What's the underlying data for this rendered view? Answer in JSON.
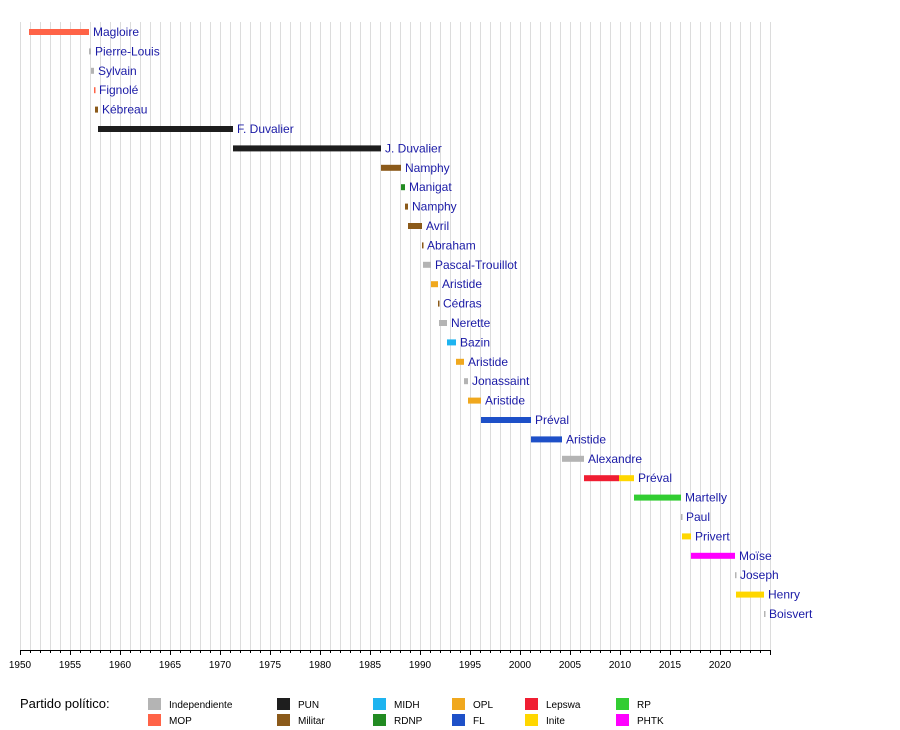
{
  "chart_data": {
    "type": "bar",
    "orientation": "horizontal-timeline",
    "x_range": [
      1950,
      2025
    ],
    "x_ticks": [
      "1950",
      "1955",
      "1960",
      "1965",
      "1970",
      "1975",
      "1980",
      "1985",
      "1990",
      "1995",
      "2000",
      "2005",
      "2010",
      "2015",
      "2020"
    ],
    "grid": "vertical, yearly",
    "legend_title": "Partido político:",
    "legend_placement": "bottom",
    "parties": [
      {
        "key": "Independiente",
        "label": "Independiente",
        "color": "#b4b4b4"
      },
      {
        "key": "MOP",
        "label": "MOP",
        "color": "#ff6347"
      },
      {
        "key": "PUN",
        "label": "PUN",
        "color": "#1e1e1e"
      },
      {
        "key": "Militar",
        "label": "Militar",
        "color": "#8b5a1a"
      },
      {
        "key": "MIDH",
        "label": "MIDH",
        "color": "#1eb4f0"
      },
      {
        "key": "RDNP",
        "label": "RDNP",
        "color": "#228b22"
      },
      {
        "key": "OPL",
        "label": "OPL",
        "color": "#f0a81e"
      },
      {
        "key": "FL",
        "label": "FL",
        "color": "#1e50c8"
      },
      {
        "key": "Lepswa",
        "label": "Lepswa",
        "color": "#f01e32"
      },
      {
        "key": "Inite",
        "label": "Inite",
        "color": "#ffd700"
      },
      {
        "key": "RP",
        "label": "RP",
        "color": "#32cd32"
      },
      {
        "key": "PHTK",
        "label": "PHTK",
        "color": "#ff00ff"
      }
    ],
    "bars": [
      {
        "label": "Magloire",
        "start": 1950.9,
        "end": 1956.9,
        "segments": [
          {
            "party": "MOP",
            "start": 1950.9,
            "end": 1956.9
          }
        ]
      },
      {
        "label": "Pierre-Louis",
        "start": 1956.9,
        "end": 1957.1,
        "segments": [
          {
            "party": "Independiente",
            "start": 1956.9,
            "end": 1957.1
          }
        ]
      },
      {
        "label": "Sylvain",
        "start": 1957.1,
        "end": 1957.4,
        "segments": [
          {
            "party": "Independiente",
            "start": 1957.1,
            "end": 1957.4
          }
        ]
      },
      {
        "label": "Fignolé",
        "start": 1957.4,
        "end": 1957.5,
        "segments": [
          {
            "party": "MOP",
            "start": 1957.4,
            "end": 1957.5
          }
        ]
      },
      {
        "label": "Kébreau",
        "start": 1957.5,
        "end": 1957.8,
        "segments": [
          {
            "party": "Militar",
            "start": 1957.5,
            "end": 1957.8
          }
        ]
      },
      {
        "label": "F. Duvalier",
        "start": 1957.8,
        "end": 1971.3,
        "segments": [
          {
            "party": "PUN",
            "start": 1957.8,
            "end": 1971.3
          }
        ]
      },
      {
        "label": "J. Duvalier",
        "start": 1971.3,
        "end": 1986.1,
        "segments": [
          {
            "party": "PUN",
            "start": 1971.3,
            "end": 1986.1
          }
        ]
      },
      {
        "label": "Namphy",
        "start": 1986.1,
        "end": 1988.1,
        "segments": [
          {
            "party": "Militar",
            "start": 1986.1,
            "end": 1988.1
          }
        ]
      },
      {
        "label": "Manigat",
        "start": 1988.1,
        "end": 1988.5,
        "segments": [
          {
            "party": "RDNP",
            "start": 1988.1,
            "end": 1988.5
          }
        ]
      },
      {
        "label": "Namphy",
        "start": 1988.5,
        "end": 1988.8,
        "segments": [
          {
            "party": "Militar",
            "start": 1988.5,
            "end": 1988.8
          }
        ]
      },
      {
        "label": "Avril",
        "start": 1988.8,
        "end": 1990.2,
        "segments": [
          {
            "party": "Militar",
            "start": 1988.8,
            "end": 1990.2
          }
        ]
      },
      {
        "label": "Abraham",
        "start": 1990.2,
        "end": 1990.3,
        "segments": [
          {
            "party": "Militar",
            "start": 1990.2,
            "end": 1990.3
          }
        ]
      },
      {
        "label": "Pascal-Trouillot",
        "start": 1990.3,
        "end": 1991.1,
        "segments": [
          {
            "party": "Independiente",
            "start": 1990.3,
            "end": 1991.1
          }
        ]
      },
      {
        "label": "Aristide",
        "start": 1991.1,
        "end": 1991.8,
        "segments": [
          {
            "party": "OPL",
            "start": 1991.1,
            "end": 1991.8
          }
        ]
      },
      {
        "label": "Cédras",
        "start": 1991.8,
        "end": 1991.9,
        "segments": [
          {
            "party": "Militar",
            "start": 1991.8,
            "end": 1991.9
          }
        ]
      },
      {
        "label": "Nerette",
        "start": 1991.9,
        "end": 1992.7,
        "segments": [
          {
            "party": "Independiente",
            "start": 1991.9,
            "end": 1992.7
          }
        ]
      },
      {
        "label": "Bazin",
        "start": 1992.7,
        "end": 1993.6,
        "segments": [
          {
            "party": "MIDH",
            "start": 1992.7,
            "end": 1993.6
          }
        ]
      },
      {
        "label": "Aristide",
        "start": 1993.6,
        "end": 1994.4,
        "segments": [
          {
            "party": "OPL",
            "start": 1993.6,
            "end": 1994.4
          }
        ]
      },
      {
        "label": "Jonassaint",
        "start": 1994.4,
        "end": 1994.8,
        "segments": [
          {
            "party": "Independiente",
            "start": 1994.4,
            "end": 1994.8
          }
        ]
      },
      {
        "label": "Aristide",
        "start": 1994.8,
        "end": 1996.1,
        "segments": [
          {
            "party": "OPL",
            "start": 1994.8,
            "end": 1996.1
          }
        ]
      },
      {
        "label": "Préval",
        "start": 1996.1,
        "end": 2001.1,
        "segments": [
          {
            "party": "FL",
            "start": 1996.1,
            "end": 2001.1
          }
        ]
      },
      {
        "label": "Aristide",
        "start": 2001.1,
        "end": 2004.2,
        "segments": [
          {
            "party": "FL",
            "start": 2001.1,
            "end": 2004.2
          }
        ]
      },
      {
        "label": "Alexandre",
        "start": 2004.2,
        "end": 2006.4,
        "segments": [
          {
            "party": "Independiente",
            "start": 2004.2,
            "end": 2006.4
          }
        ]
      },
      {
        "label": "Préval",
        "start": 2006.4,
        "end": 2011.4,
        "segments": [
          {
            "party": "Lepswa",
            "start": 2006.4,
            "end": 2009.9
          },
          {
            "party": "Inite",
            "start": 2009.9,
            "end": 2011.4
          }
        ]
      },
      {
        "label": "Martelly",
        "start": 2011.4,
        "end": 2016.1,
        "segments": [
          {
            "party": "RP",
            "start": 2011.4,
            "end": 2016.1
          }
        ]
      },
      {
        "label": "Paul",
        "start": 2016.1,
        "end": 2016.2,
        "segments": [
          {
            "party": "Independiente",
            "start": 2016.1,
            "end": 2016.2
          }
        ]
      },
      {
        "label": "Privert",
        "start": 2016.2,
        "end": 2017.1,
        "segments": [
          {
            "party": "Inite",
            "start": 2016.2,
            "end": 2017.1
          }
        ]
      },
      {
        "label": "Moïse",
        "start": 2017.1,
        "end": 2021.5,
        "segments": [
          {
            "party": "PHTK",
            "start": 2017.1,
            "end": 2021.5
          }
        ]
      },
      {
        "label": "Joseph",
        "start": 2021.5,
        "end": 2021.6,
        "segments": [
          {
            "party": "Independiente",
            "start": 2021.5,
            "end": 2021.6
          }
        ]
      },
      {
        "label": "Henry",
        "start": 2021.6,
        "end": 2024.4,
        "segments": [
          {
            "party": "Inite",
            "start": 2021.6,
            "end": 2024.4
          }
        ]
      },
      {
        "label": "Boisvert",
        "start": 2024.4,
        "end": 2024.5,
        "segments": [
          {
            "party": "Independiente",
            "start": 2024.4,
            "end": 2024.5
          }
        ]
      }
    ]
  }
}
